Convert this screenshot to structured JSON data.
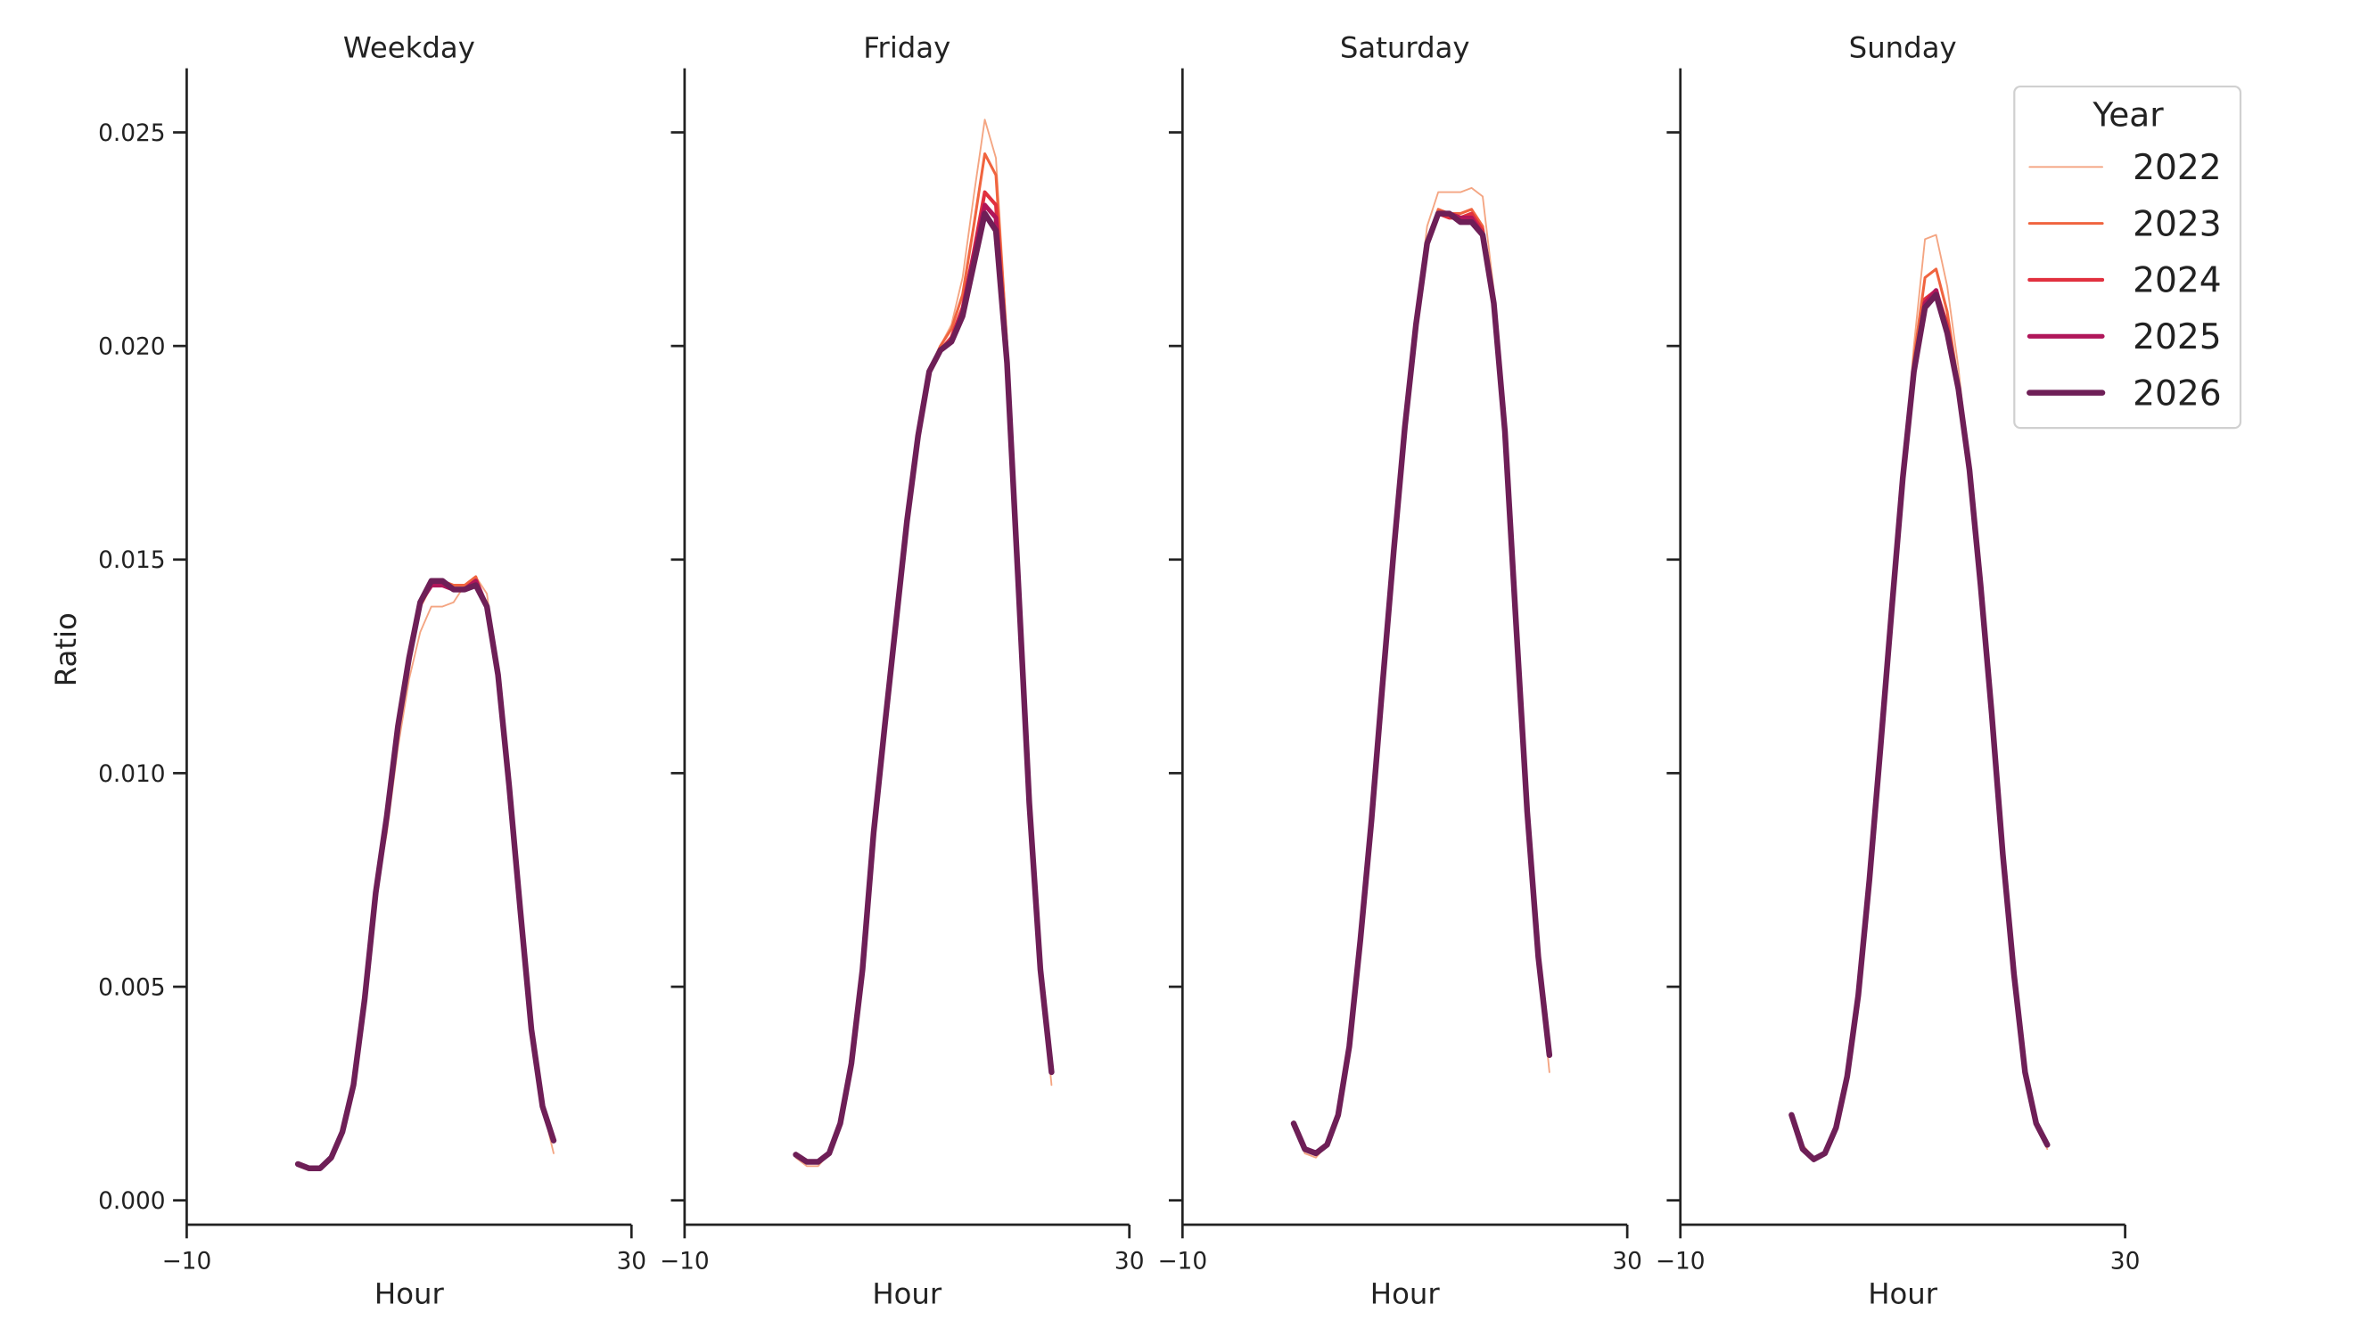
{
  "chart_data": {
    "type": "line",
    "xlabel": "Hour",
    "ylabel": "Ratio",
    "xlim": [
      -10,
      30
    ],
    "ylim": [
      -0.00057,
      0.0265
    ],
    "xticks": [
      "−10",
      "30"
    ],
    "xtick_values": [
      -10,
      30
    ],
    "yticks": [
      "0.000",
      "0.005",
      "0.010",
      "0.015",
      "0.020",
      "0.025"
    ],
    "ytick_values": [
      0,
      0.005,
      0.01,
      0.015,
      0.02,
      0.025
    ],
    "grid": false,
    "hours": [
      0,
      1,
      2,
      3,
      4,
      5,
      6,
      7,
      8,
      9,
      10,
      11,
      12,
      13,
      14,
      15,
      16,
      17,
      18,
      19,
      20,
      21,
      22,
      23
    ],
    "legend": {
      "title": "Year",
      "placement": "top-right",
      "entries": [
        "2022",
        "2023",
        "2024",
        "2025",
        "2026"
      ]
    },
    "colors": {
      "2022": "#f4a582",
      "2023": "#f0643f",
      "2024": "#e1303f",
      "2025": "#b0165a",
      "2026": "#6e1f57"
    },
    "panels": [
      {
        "title": "Weekday",
        "series": [
          {
            "name": "2022",
            "values": [
              0.0008,
              0.0007,
              0.0007,
              0.001,
              0.0016,
              0.0027,
              0.0047,
              0.0071,
              0.0086,
              0.0106,
              0.0122,
              0.0133,
              0.0139,
              0.0139,
              0.014,
              0.0144,
              0.0146,
              0.0142,
              0.0123,
              0.0097,
              0.0068,
              0.004,
              0.0022,
              0.0011
            ]
          },
          {
            "name": "2023",
            "values": [
              0.00085,
              0.00075,
              0.00075,
              0.001,
              0.0016,
              0.0027,
              0.0047,
              0.0072,
              0.0089,
              0.011,
              0.0126,
              0.0139,
              0.0144,
              0.0145,
              0.0144,
              0.0144,
              0.0146,
              0.0139,
              0.0123,
              0.0097,
              0.0068,
              0.004,
              0.0022,
              0.0014
            ]
          },
          {
            "name": "2024",
            "values": [
              0.00085,
              0.00075,
              0.00075,
              0.001,
              0.0016,
              0.0027,
              0.0047,
              0.0072,
              0.009,
              0.0111,
              0.0127,
              0.014,
              0.0145,
              0.0145,
              0.0143,
              0.0143,
              0.0145,
              0.0139,
              0.0123,
              0.0097,
              0.0068,
              0.004,
              0.0022,
              0.0014
            ]
          },
          {
            "name": "2025",
            "values": [
              0.00085,
              0.00075,
              0.00075,
              0.001,
              0.0016,
              0.0027,
              0.0047,
              0.0072,
              0.009,
              0.0111,
              0.0127,
              0.014,
              0.0144,
              0.0144,
              0.0143,
              0.0143,
              0.0145,
              0.0139,
              0.0123,
              0.0097,
              0.0068,
              0.004,
              0.0022,
              0.0014
            ]
          },
          {
            "name": "2026",
            "values": [
              0.00085,
              0.00075,
              0.00075,
              0.001,
              0.0016,
              0.0027,
              0.0047,
              0.0072,
              0.009,
              0.0111,
              0.0127,
              0.014,
              0.0145,
              0.0145,
              0.0143,
              0.0143,
              0.0144,
              0.0139,
              0.0123,
              0.0097,
              0.0068,
              0.004,
              0.0022,
              0.0014
            ]
          }
        ]
      },
      {
        "title": "Friday",
        "series": [
          {
            "name": "2022",
            "values": [
              0.001,
              0.0008,
              0.0008,
              0.0011,
              0.0018,
              0.0032,
              0.0054,
              0.0086,
              0.0111,
              0.0135,
              0.0159,
              0.0179,
              0.0194,
              0.02,
              0.0205,
              0.0216,
              0.0235,
              0.0253,
              0.0244,
              0.0202,
              0.0145,
              0.0093,
              0.0054,
              0.0027
            ]
          },
          {
            "name": "2023",
            "values": [
              0.00107,
              0.0009,
              0.0009,
              0.0011,
              0.0018,
              0.0032,
              0.0054,
              0.0086,
              0.0111,
              0.0135,
              0.0159,
              0.0179,
              0.0194,
              0.02,
              0.0204,
              0.0212,
              0.0228,
              0.0245,
              0.024,
              0.02,
              0.0145,
              0.0093,
              0.0054,
              0.003
            ]
          },
          {
            "name": "2024",
            "values": [
              0.00107,
              0.0009,
              0.0009,
              0.0011,
              0.0018,
              0.0032,
              0.0054,
              0.0086,
              0.0111,
              0.0135,
              0.0159,
              0.0179,
              0.0194,
              0.0199,
              0.0202,
              0.0209,
              0.0222,
              0.0236,
              0.0233,
              0.0197,
              0.0145,
              0.0093,
              0.0054,
              0.003
            ]
          },
          {
            "name": "2025",
            "values": [
              0.00107,
              0.0009,
              0.0009,
              0.0011,
              0.0018,
              0.0032,
              0.0054,
              0.0086,
              0.0111,
              0.0135,
              0.0159,
              0.0179,
              0.0194,
              0.0199,
              0.0201,
              0.0208,
              0.0221,
              0.0233,
              0.023,
              0.0196,
              0.0145,
              0.0093,
              0.0054,
              0.003
            ]
          },
          {
            "name": "2026",
            "values": [
              0.00107,
              0.0009,
              0.0009,
              0.0011,
              0.0018,
              0.0032,
              0.0054,
              0.0086,
              0.0111,
              0.0135,
              0.0159,
              0.0179,
              0.0194,
              0.0199,
              0.0201,
              0.0207,
              0.0219,
              0.0231,
              0.0227,
              0.0196,
              0.0145,
              0.0093,
              0.0054,
              0.003
            ]
          }
        ]
      },
      {
        "title": "Saturday",
        "series": [
          {
            "name": "2022",
            "values": [
              0.0018,
              0.0011,
              0.001,
              0.0013,
              0.002,
              0.0036,
              0.0061,
              0.0089,
              0.0121,
              0.0152,
              0.0181,
              0.0206,
              0.0228,
              0.0236,
              0.0236,
              0.0236,
              0.0237,
              0.0235,
              0.0213,
              0.018,
              0.0135,
              0.0091,
              0.0056,
              0.003
            ]
          },
          {
            "name": "2023",
            "values": [
              0.0018,
              0.0012,
              0.0011,
              0.0013,
              0.002,
              0.0036,
              0.0061,
              0.0089,
              0.0121,
              0.0152,
              0.0181,
              0.0205,
              0.0224,
              0.0232,
              0.0231,
              0.0231,
              0.0232,
              0.0228,
              0.021,
              0.018,
              0.0135,
              0.0091,
              0.0057,
              0.0034
            ]
          },
          {
            "name": "2024",
            "values": [
              0.0018,
              0.0012,
              0.0011,
              0.0013,
              0.002,
              0.0036,
              0.0061,
              0.0089,
              0.0121,
              0.0152,
              0.0181,
              0.0205,
              0.0224,
              0.0231,
              0.023,
              0.023,
              0.0231,
              0.0227,
              0.021,
              0.018,
              0.0135,
              0.0091,
              0.0057,
              0.0034
            ]
          },
          {
            "name": "2025",
            "values": [
              0.0018,
              0.0012,
              0.0011,
              0.0013,
              0.002,
              0.0036,
              0.0061,
              0.0089,
              0.0121,
              0.0152,
              0.0181,
              0.0205,
              0.0224,
              0.0231,
              0.0231,
              0.023,
              0.023,
              0.0226,
              0.021,
              0.018,
              0.0135,
              0.0091,
              0.0057,
              0.0034
            ]
          },
          {
            "name": "2026",
            "values": [
              0.0018,
              0.0012,
              0.0011,
              0.0013,
              0.002,
              0.0036,
              0.0061,
              0.0089,
              0.0121,
              0.0152,
              0.0181,
              0.0205,
              0.0224,
              0.0231,
              0.0231,
              0.0229,
              0.0229,
              0.0226,
              0.021,
              0.018,
              0.0135,
              0.0091,
              0.0057,
              0.0034
            ]
          }
        ]
      },
      {
        "title": "Sunday",
        "series": [
          {
            "name": "2022",
            "values": [
              0.002,
              0.0013,
              0.001,
              0.0011,
              0.0017,
              0.0029,
              0.0048,
              0.0075,
              0.0106,
              0.0138,
              0.0169,
              0.02,
              0.0225,
              0.0226,
              0.0214,
              0.0195,
              0.0171,
              0.0144,
              0.0114,
              0.0081,
              0.0053,
              0.003,
              0.0017,
              0.0012
            ]
          },
          {
            "name": "2023",
            "values": [
              0.002,
              0.0012,
              0.00096,
              0.0011,
              0.0017,
              0.0029,
              0.0048,
              0.0075,
              0.0106,
              0.0138,
              0.0169,
              0.0197,
              0.0216,
              0.0218,
              0.0208,
              0.0191,
              0.0171,
              0.0144,
              0.0114,
              0.0081,
              0.0053,
              0.003,
              0.0018,
              0.0013
            ]
          },
          {
            "name": "2024",
            "values": [
              0.002,
              0.0012,
              0.00096,
              0.0011,
              0.0017,
              0.0029,
              0.0048,
              0.0075,
              0.0106,
              0.0138,
              0.0169,
              0.0194,
              0.0211,
              0.0213,
              0.0205,
              0.019,
              0.0171,
              0.0144,
              0.0114,
              0.0081,
              0.0053,
              0.003,
              0.0018,
              0.0013
            ]
          },
          {
            "name": "2025",
            "values": [
              0.002,
              0.0012,
              0.00096,
              0.0011,
              0.0017,
              0.0029,
              0.0048,
              0.0075,
              0.0106,
              0.0138,
              0.0169,
              0.0194,
              0.021,
              0.0213,
              0.0203,
              0.019,
              0.0171,
              0.0144,
              0.0114,
              0.0081,
              0.0053,
              0.003,
              0.0018,
              0.0013
            ]
          },
          {
            "name": "2026",
            "values": [
              0.002,
              0.0012,
              0.00096,
              0.0011,
              0.0017,
              0.0029,
              0.0048,
              0.0075,
              0.0106,
              0.0138,
              0.0169,
              0.0194,
              0.0209,
              0.0212,
              0.0203,
              0.019,
              0.0171,
              0.0144,
              0.0114,
              0.0081,
              0.0053,
              0.003,
              0.0018,
              0.0013
            ]
          }
        ]
      }
    ]
  }
}
